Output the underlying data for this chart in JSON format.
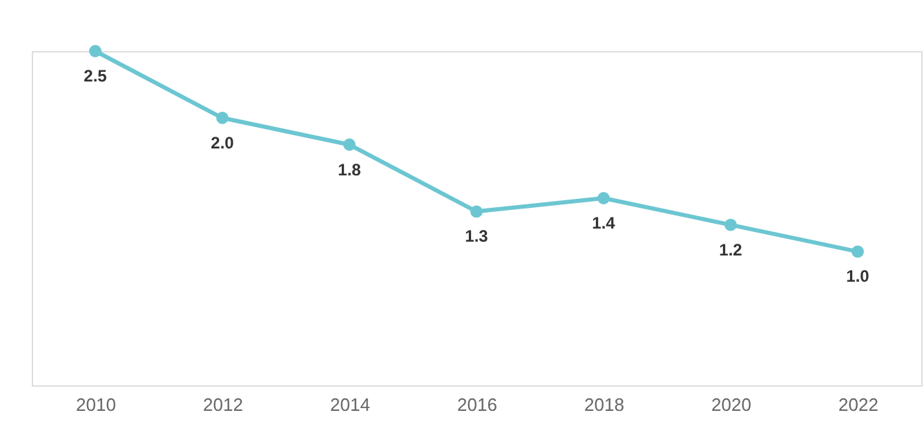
{
  "chart_data": {
    "type": "line",
    "categories": [
      "2010",
      "2012",
      "2014",
      "2016",
      "2018",
      "2020",
      "2022"
    ],
    "series": [
      {
        "color": "#6cc6d2",
        "values": [
          2.5,
          2.0,
          1.8,
          1.3,
          1.4,
          1.2,
          1.0
        ],
        "value_labels": [
          "2.5",
          "2.0",
          "1.8",
          "1.3",
          "1.4",
          "1.2",
          "1.0"
        ]
      }
    ],
    "marker": "circle",
    "tick_labels": "x"
  }
}
